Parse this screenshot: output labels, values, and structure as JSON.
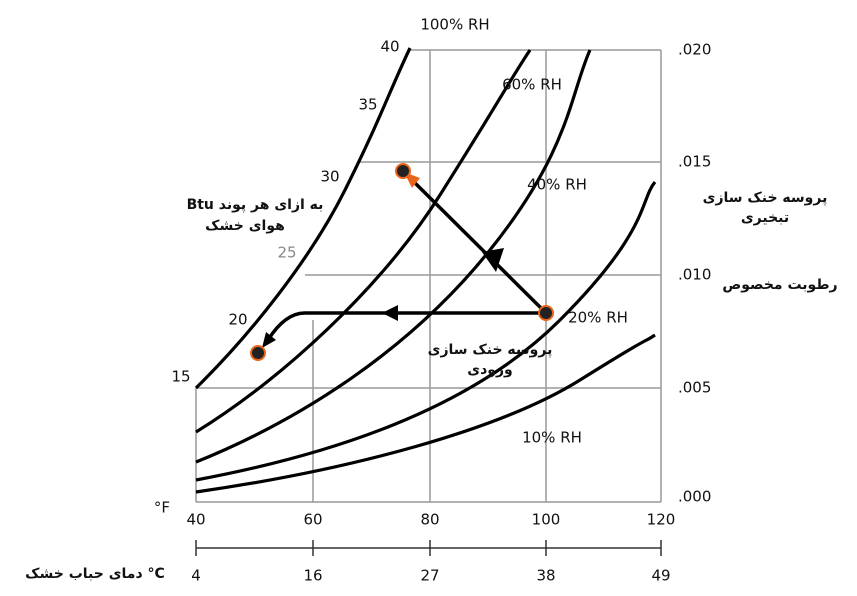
{
  "rh_labels": [
    "100% RH",
    "60% RH",
    "40% RH",
    "20% RH",
    "10% RH"
  ],
  "wet_bulb_labels": [
    "40",
    "35",
    "30",
    "25",
    "20",
    "15"
  ],
  "x_axis": {
    "unit_f": "°F",
    "f_labels": [
      "40",
      "60",
      "80",
      "100",
      "120"
    ],
    "unit_c": "دمای حباب خشک °C",
    "c_labels": [
      "4",
      "16",
      "27",
      "38",
      "49"
    ]
  },
  "y_axis": {
    "title": "رطوبت مخصوص",
    "labels": [
      ".020",
      ".015",
      ".010",
      ".005",
      ".000"
    ]
  },
  "annotations": {
    "btu": [
      "Btu به ازای هر پوند",
      "هوای خشک"
    ],
    "evaporative": [
      "پروسه خنک سازی",
      "تبخیری"
    ],
    "inlet": [
      "پروسه خنک سازی",
      "ورودی"
    ]
  }
}
